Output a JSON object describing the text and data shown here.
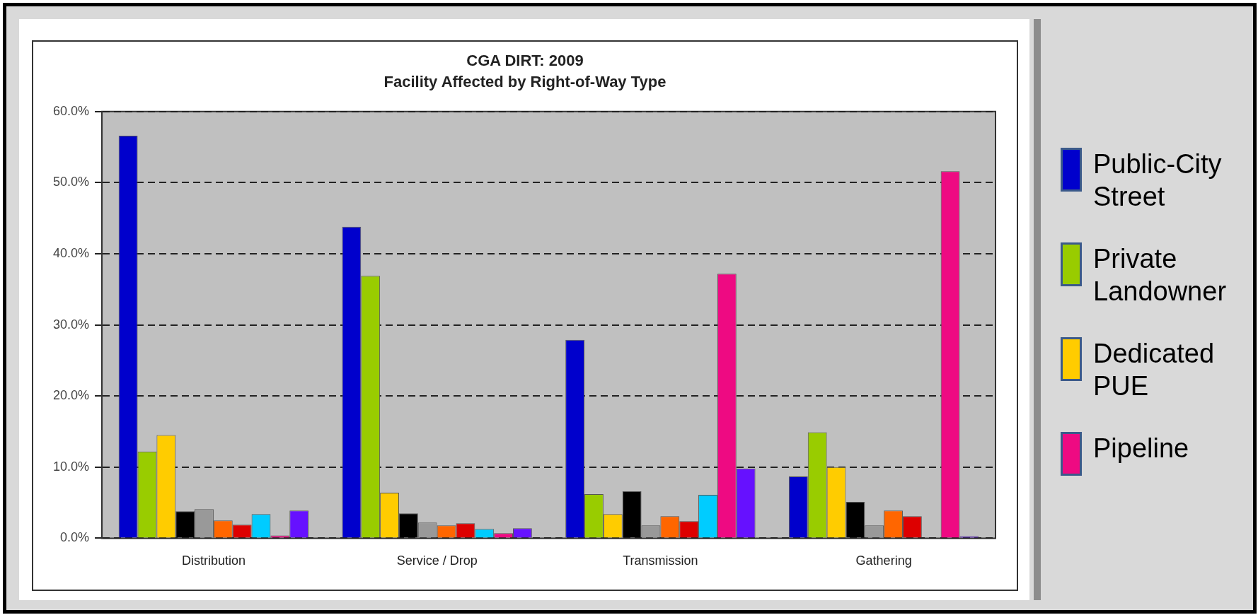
{
  "chart_data": {
    "type": "bar",
    "title": "CGA DIRT: 2009",
    "subtitle": "Facility Affected by Right-of-Way Type",
    "categories": [
      "Distribution",
      "Service / Drop",
      "Transmission",
      "Gathering"
    ],
    "series": [
      {
        "name": "Public-City Street",
        "color": "#0000cc",
        "values": [
          56.6,
          43.8,
          27.9,
          8.7
        ]
      },
      {
        "name": "Private Landowner",
        "color": "#99cc00",
        "values": [
          12.2,
          36.9,
          6.2,
          14.9
        ]
      },
      {
        "name": "Dedicated PUE",
        "color": "#ffcc00",
        "values": [
          14.5,
          6.4,
          3.4,
          10.0
        ]
      },
      {
        "color": "#000000",
        "values": [
          3.8,
          3.5,
          6.6,
          5.1
        ]
      },
      {
        "color": "#999999",
        "values": [
          4.1,
          2.2,
          1.8,
          1.8
        ]
      },
      {
        "color": "#ff6600",
        "values": [
          2.5,
          1.8,
          3.1,
          3.9
        ]
      },
      {
        "color": "#dd0000",
        "values": [
          1.9,
          2.1,
          2.4,
          3.1
        ]
      },
      {
        "color": "#00ccff",
        "values": [
          3.4,
          1.3,
          6.1,
          null
        ]
      },
      {
        "name": "Pipeline",
        "color": "#ee0a82",
        "values": [
          0.4,
          0.7,
          37.2,
          51.6
        ]
      },
      {
        "color": "#6611ff",
        "values": [
          3.9,
          1.4,
          9.8,
          0.3
        ]
      }
    ],
    "ylim": [
      0,
      60
    ],
    "yticks": [
      {
        "value": 0,
        "label": "0.0%"
      },
      {
        "value": 10,
        "label": "10.0%"
      },
      {
        "value": 20,
        "label": "20.0%"
      },
      {
        "value": 30,
        "label": "30.0%"
      },
      {
        "value": 40,
        "label": "40.0%"
      },
      {
        "value": 50,
        "label": "50.0%"
      },
      {
        "value": 60,
        "label": "60.0%"
      }
    ],
    "grid": "y",
    "line_style": "dashed",
    "legend": "right"
  }
}
